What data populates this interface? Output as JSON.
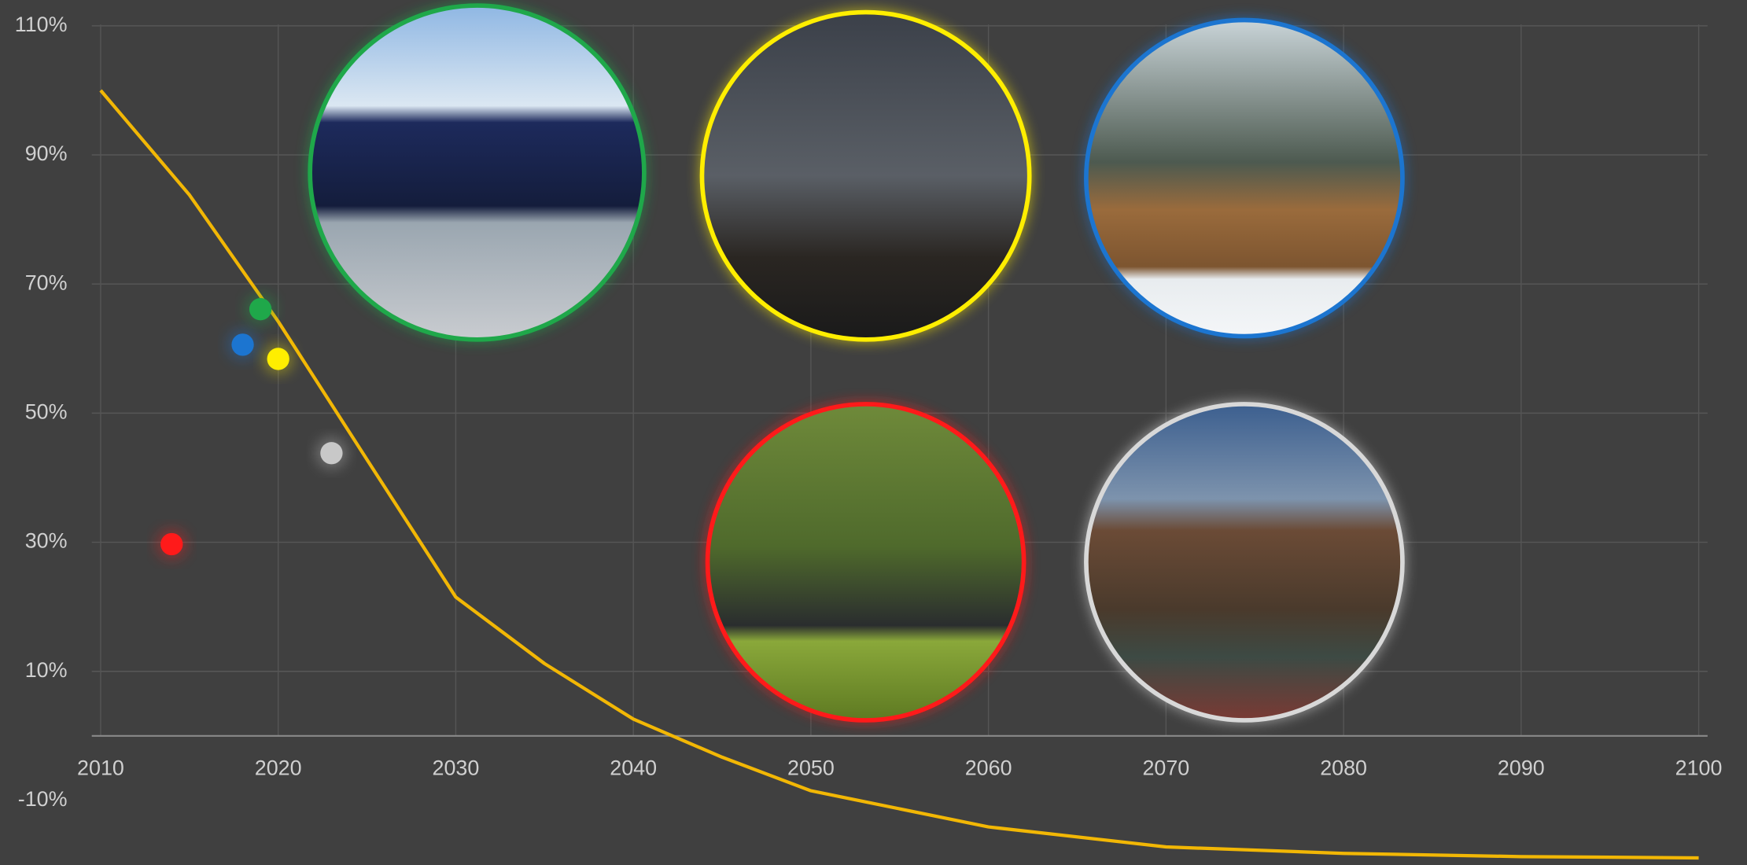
{
  "chart_data": {
    "type": "line",
    "xlim": [
      2009.5,
      2100.5
    ],
    "ylim": [
      -20,
      114
    ],
    "xticks": [
      2010,
      2020,
      2030,
      2040,
      2050,
      2060,
      2070,
      2080,
      2090,
      2100
    ],
    "yticks": [
      {
        "value": 110,
        "label": "110%"
      },
      {
        "value": 90,
        "label": "90%"
      },
      {
        "value": 70,
        "label": "70%"
      },
      {
        "value": 50,
        "label": "50%"
      },
      {
        "value": 30,
        "label": "30%"
      },
      {
        "value": 10,
        "label": "10%"
      },
      {
        "value": -10,
        "label": "-10%"
      }
    ],
    "grid": true,
    "series": [
      {
        "type": "line",
        "color": "#f2b705",
        "x": [
          2010,
          2015,
          2020,
          2025,
          2030,
          2035,
          2040,
          2045,
          2050,
          2060,
          2070,
          2080,
          2090,
          2100
        ],
        "values": [
          100,
          83.8,
          64.2,
          42.8,
          21.5,
          11.2,
          2.6,
          -3.3,
          -8.5,
          -14.1,
          -17.2,
          -18.2,
          -18.7,
          -18.9
        ]
      },
      {
        "type": "scatter",
        "color": "#ff1a1a",
        "x": [
          2014
        ],
        "values": [
          29.7
        ]
      },
      {
        "type": "scatter",
        "color": "#1c75d0",
        "x": [
          2018
        ],
        "values": [
          60.6
        ]
      },
      {
        "type": "scatter",
        "color": "#1fa84a",
        "x": [
          2019
        ],
        "values": [
          66.1
        ]
      },
      {
        "type": "scatter",
        "color": "#ffee00",
        "x": [
          2020
        ],
        "values": [
          58.4
        ]
      },
      {
        "type": "scatter",
        "color": "#c8c8c8",
        "x": [
          2023
        ],
        "values": [
          43.8
        ]
      }
    ]
  }
}
